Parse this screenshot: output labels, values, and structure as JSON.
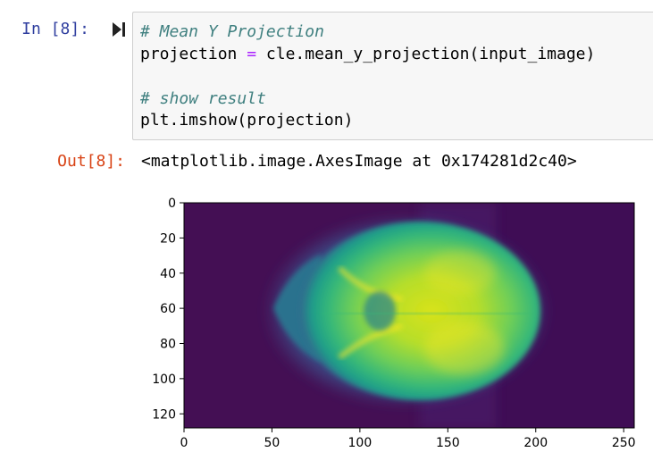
{
  "cell": {
    "in_prompt": "In [8]:",
    "out_prompt": "Out[8]:",
    "code": {
      "line1": "# Mean Y Projection",
      "line2_var": "projection ",
      "line2_op": "=",
      "line2_rest": " cle.mean_y_projection(input_image)",
      "line3": "# show result",
      "line4": "plt.imshow(projection)"
    },
    "output_text": "<matplotlib.image.AxesImage at 0x174281d2c40>"
  },
  "icons": {
    "run": "run-cell-icon"
  },
  "chart_data": {
    "type": "heatmap",
    "title": "",
    "xlabel": "",
    "ylabel": "",
    "colormap": "viridis",
    "xlim": [
      0,
      256
    ],
    "ylim": [
      128,
      0
    ],
    "x_ticks": [
      0,
      50,
      100,
      150,
      200,
      250
    ],
    "y_ticks": [
      0,
      20,
      40,
      60,
      80,
      100,
      120
    ],
    "x_tick_labels": [
      "0",
      "50",
      "100",
      "150",
      "200",
      "250"
    ],
    "y_tick_labels": [
      "0",
      "20",
      "40",
      "60",
      "80",
      "100",
      "120"
    ],
    "grid": false,
    "legend": "none",
    "background_value_color": "#440f54"
  }
}
